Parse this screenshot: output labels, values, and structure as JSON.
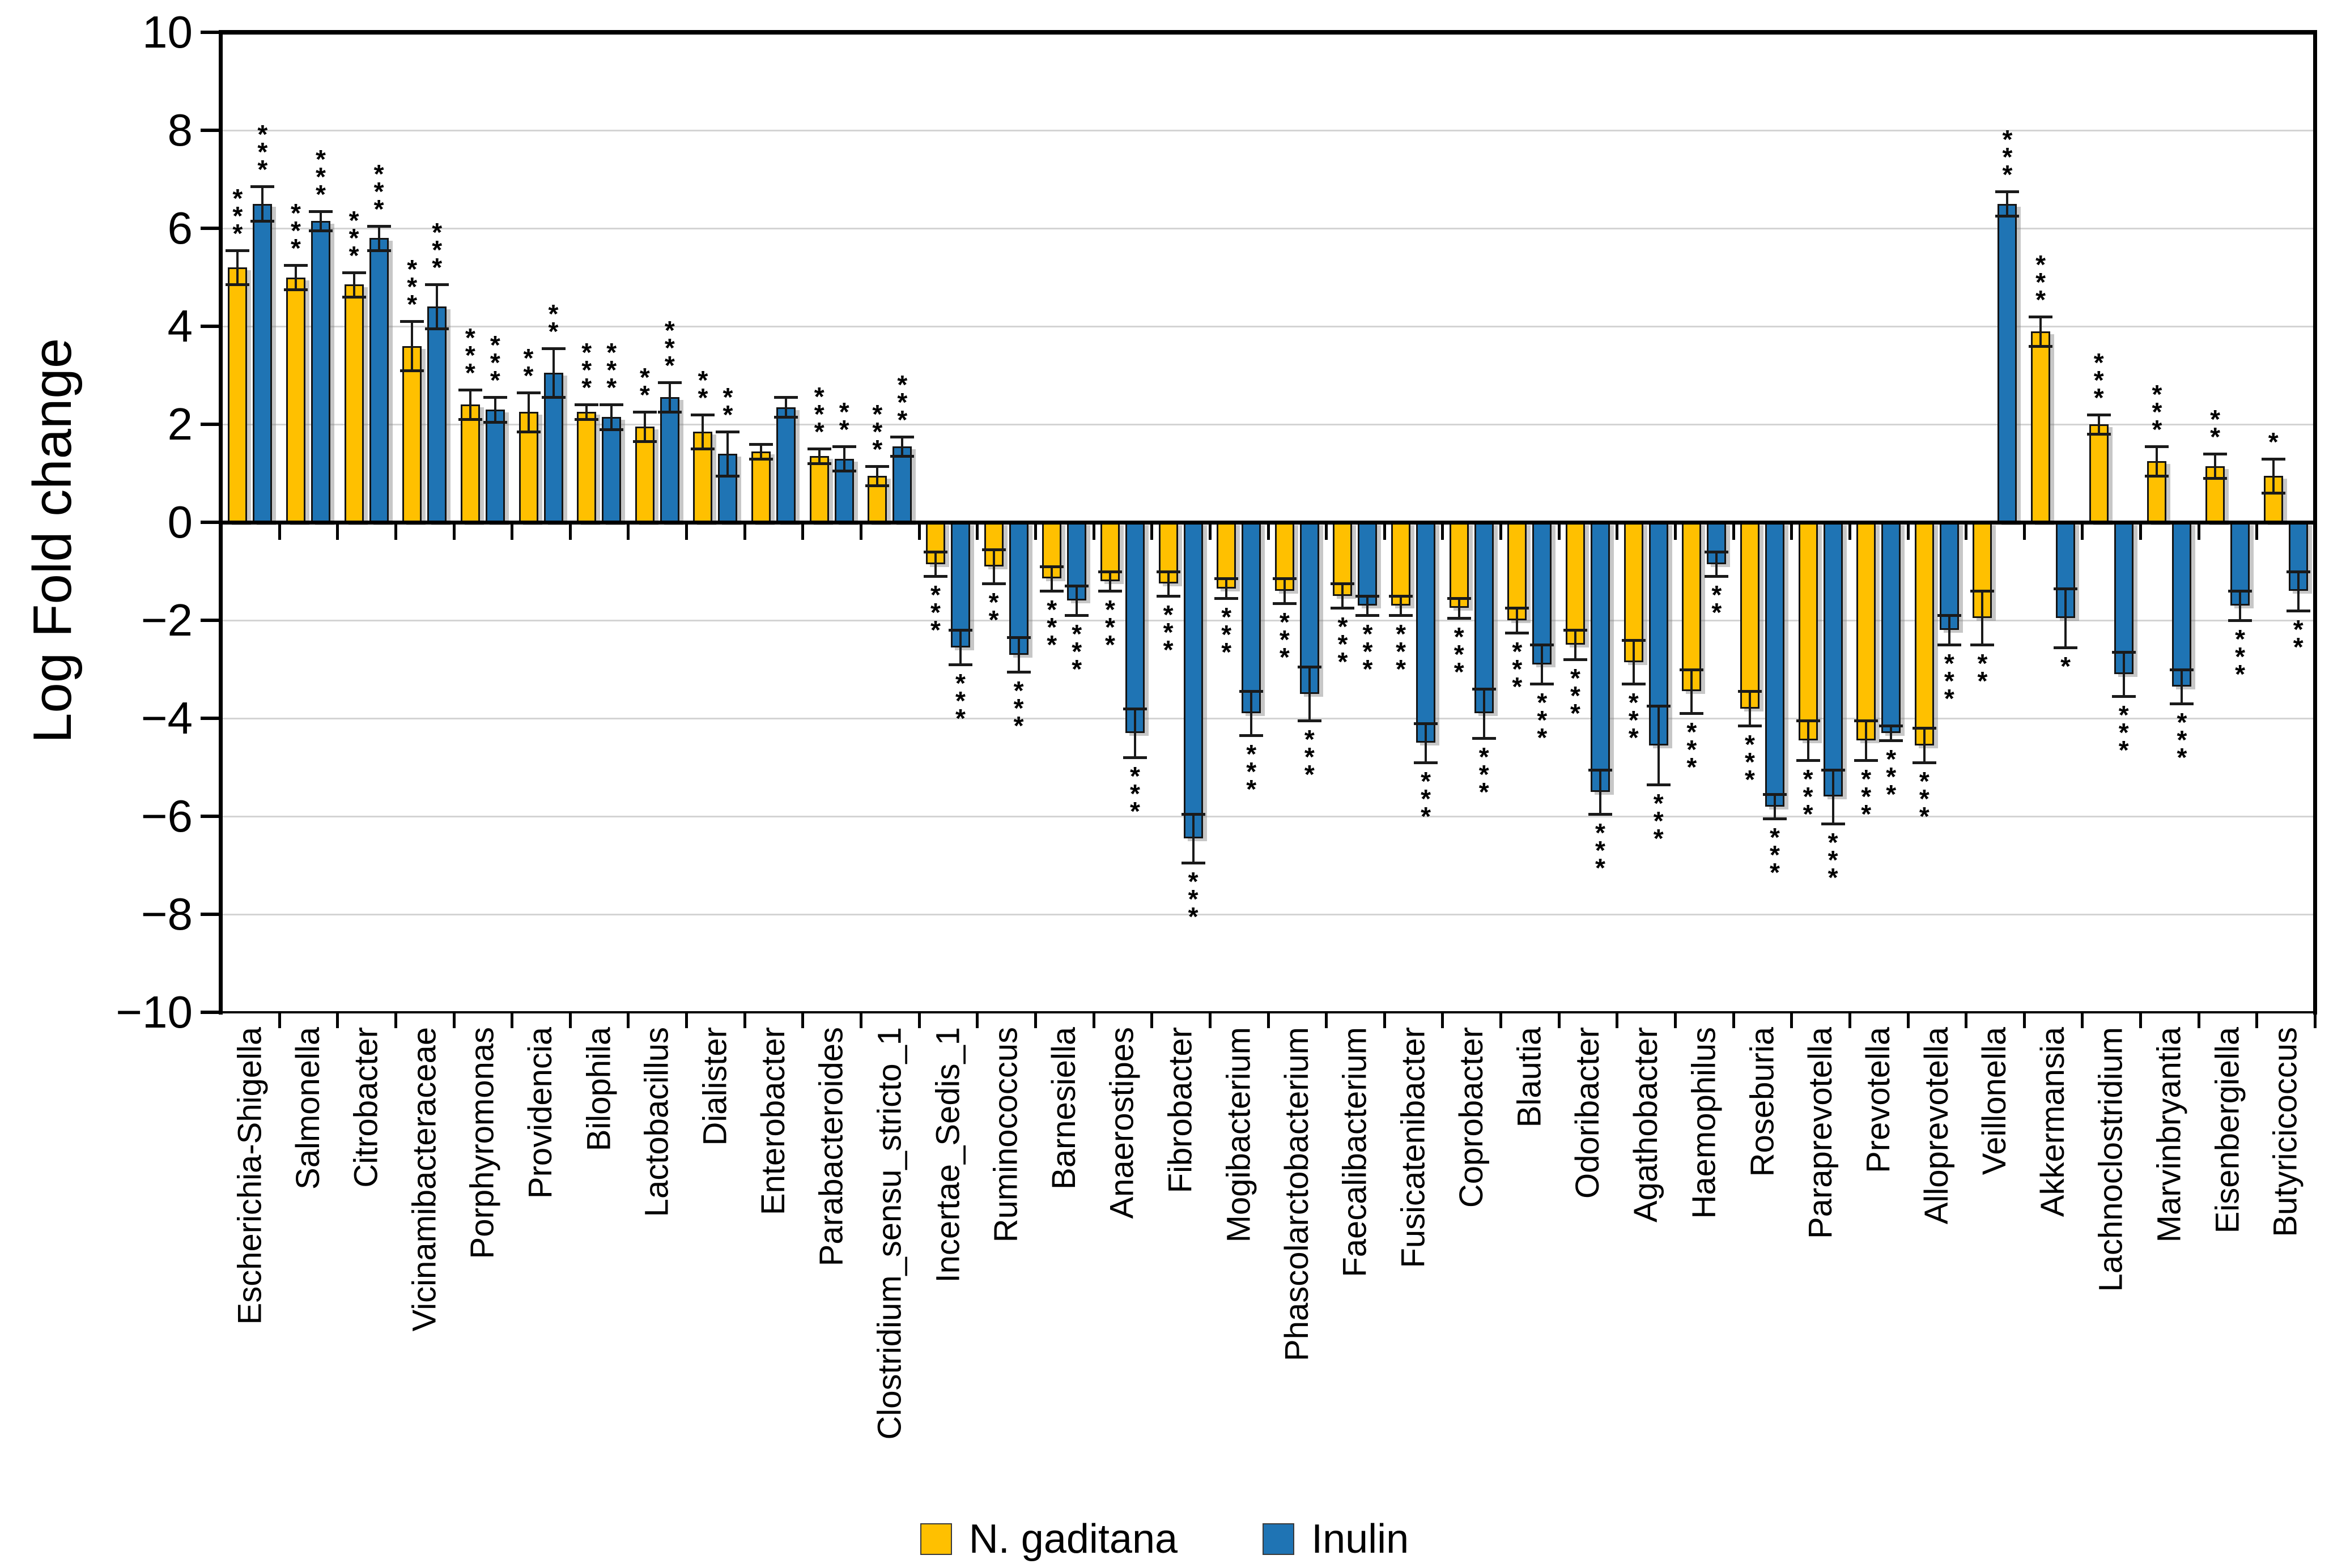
{
  "figure": {
    "background": "#FFFFFF"
  },
  "axis": {
    "y_ticks": [
      "10",
      "8",
      "6",
      "4",
      "2",
      "0",
      "−2",
      "−4",
      "−6",
      "−8",
      "−10"
    ]
  },
  "chart_data": {
    "type": "bar",
    "title": "",
    "xlabel": "",
    "ylabel": "Log Fold change",
    "ylim": [
      -10,
      10
    ],
    "ytick_step": 2,
    "grid": true,
    "legend_position": "bottom",
    "significance_note_glyph": "*",
    "categories": [
      "Escherichia-Shigella",
      "Salmonella",
      "Citrobacter",
      "Vicinamibacteraceae",
      "Porphyromonas",
      "Providencia",
      "Bilophila",
      "Lactobacillus",
      "Dialister",
      "Enterobacter",
      "Parabacteroides",
      "Clostridium_sensu_stricto_1",
      "Incertae_Sedis_1",
      "Ruminococcus",
      "Barnesiella",
      "Anaerostipes",
      "Fibrobacter",
      "Mogibacterium",
      "Phascolarctobacterium",
      "Faecalibacterium",
      "Fusicatenibacter",
      "Coprobacter",
      "Blautia",
      "Odoribacter",
      "Agathobacter",
      "Haemophilus",
      "Roseburia",
      "Paraprevotella",
      "Prevotella",
      "Alloprevotella",
      "Veillonella",
      "Akkermansia",
      "Lachnoclostridium",
      "Marvinbryantia",
      "Eisenbergiella",
      "Butyricicoccus"
    ],
    "series": [
      {
        "name": "N. gaditana",
        "color": "#FFC000",
        "values": [
          5.2,
          5.0,
          4.85,
          3.6,
          2.4,
          2.25,
          2.25,
          1.95,
          1.85,
          1.45,
          1.35,
          0.95,
          -0.85,
          -0.9,
          -1.15,
          -1.2,
          -1.25,
          -1.35,
          -1.4,
          -1.5,
          -1.7,
          -1.75,
          -2.0,
          -2.5,
          -2.85,
          -3.45,
          -3.8,
          -4.45,
          -4.45,
          -4.55,
          -1.95,
          3.9,
          2.0,
          1.25,
          1.15,
          0.95
        ],
        "errors": [
          0.35,
          0.25,
          0.25,
          0.5,
          0.3,
          0.4,
          0.15,
          0.3,
          0.35,
          0.15,
          0.15,
          0.2,
          0.25,
          0.35,
          0.25,
          0.2,
          0.25,
          0.2,
          0.25,
          0.25,
          0.2,
          0.2,
          0.25,
          0.3,
          0.45,
          0.45,
          0.35,
          0.4,
          0.4,
          0.35,
          0.55,
          0.3,
          0.2,
          0.3,
          0.25,
          0.35
        ],
        "significance": [
          "***",
          "***",
          "***",
          "***",
          "***",
          "**",
          "***",
          "**",
          "**",
          "",
          "***",
          "***",
          "***",
          "**",
          "***",
          "***",
          "***",
          "***",
          "***",
          "***",
          "***",
          "***",
          "***",
          "***",
          "***",
          "***",
          "***",
          "***",
          "***",
          "***",
          "**",
          "***",
          "***",
          "***",
          "**",
          "*"
        ]
      },
      {
        "name": "Inulin",
        "color": "#1F74B4",
        "values": [
          6.5,
          6.15,
          5.8,
          4.4,
          2.3,
          3.05,
          2.15,
          2.55,
          1.4,
          2.35,
          1.3,
          1.55,
          -2.55,
          -2.7,
          -1.6,
          -4.3,
          -6.45,
          -3.9,
          -3.5,
          -1.7,
          -4.5,
          -3.9,
          -2.9,
          -5.5,
          -4.55,
          -0.85,
          -5.8,
          -5.6,
          -4.3,
          -2.2,
          6.5,
          -1.95,
          -3.1,
          -3.35,
          -1.7,
          -1.4
        ],
        "errors": [
          0.35,
          0.2,
          0.25,
          0.45,
          0.25,
          0.5,
          0.25,
          0.3,
          0.45,
          0.2,
          0.25,
          0.2,
          0.35,
          0.35,
          0.3,
          0.5,
          0.5,
          0.45,
          0.55,
          0.2,
          0.4,
          0.5,
          0.4,
          0.45,
          0.8,
          0.25,
          0.25,
          0.55,
          0.15,
          0.3,
          0.25,
          0.6,
          0.45,
          0.35,
          0.3,
          0.4
        ],
        "significance": [
          "***",
          "***",
          "***",
          "***",
          "***",
          "**",
          "***",
          "***",
          "**",
          "",
          "**",
          "***",
          "***",
          "***",
          "***",
          "***",
          "***",
          "***",
          "***",
          "***",
          "***",
          "***",
          "***",
          "***",
          "***",
          "**",
          "***",
          "***",
          "***",
          "***",
          "***",
          "*",
          "***",
          "***",
          "***",
          "**"
        ]
      }
    ]
  },
  "legend": {
    "items": [
      {
        "label": "N. gaditana",
        "color": "#FFC000"
      },
      {
        "label": "Inulin",
        "color": "#1F74B4"
      }
    ]
  }
}
